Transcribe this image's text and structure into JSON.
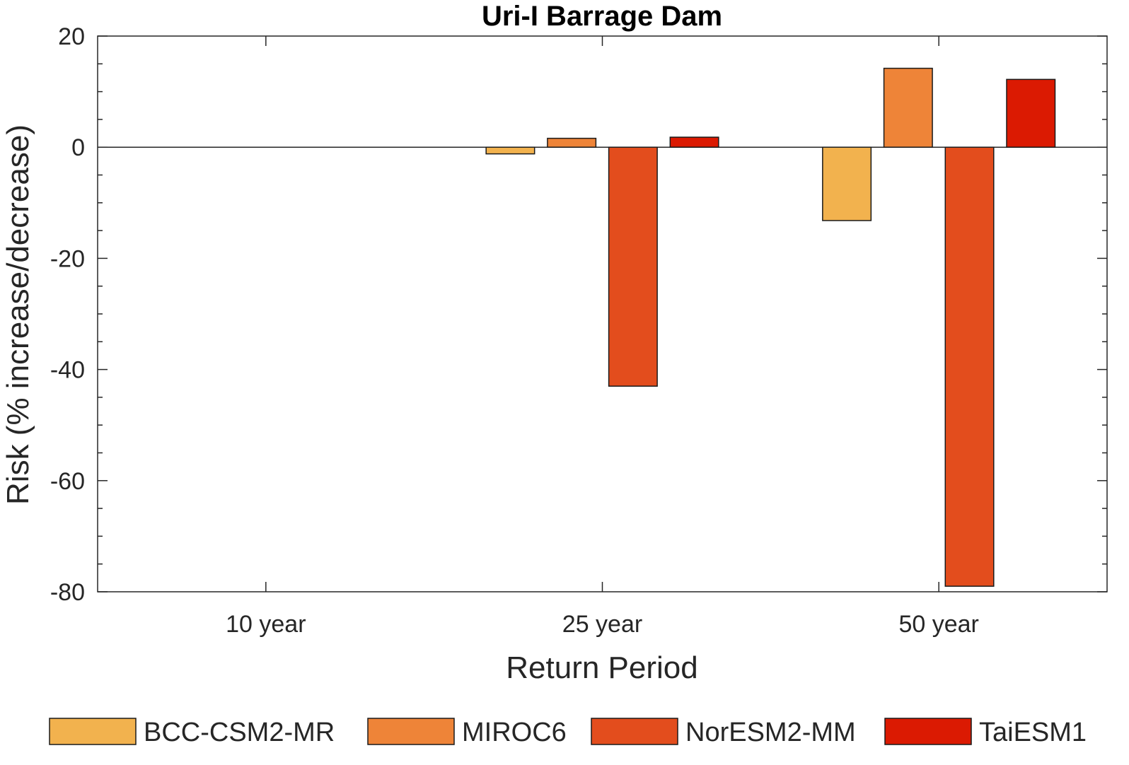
{
  "chart_data": {
    "type": "bar",
    "title": "Uri-I Barrage Dam",
    "xlabel": "Return Period",
    "ylabel": "Risk (% increase/decrease)",
    "categories": [
      "10 year",
      "25 year",
      "50 year"
    ],
    "ylim": [
      -80,
      20
    ],
    "yticks": [
      20,
      0,
      -20,
      -40,
      -60,
      -80
    ],
    "grid": false,
    "legend_position": "bottom",
    "series": [
      {
        "name": "BCC-CSM2-MR",
        "color": "#F2B24E",
        "values": [
          0,
          -1.2,
          -13.2
        ]
      },
      {
        "name": "MIROC6",
        "color": "#EE8438",
        "values": [
          0,
          1.6,
          14.2
        ]
      },
      {
        "name": "NorESM2-MM",
        "color": "#E34D1D",
        "values": [
          0,
          -43.0,
          -79.0
        ]
      },
      {
        "name": "TaiESM1",
        "color": "#DB1A02",
        "values": [
          0,
          1.8,
          12.2
        ]
      }
    ]
  }
}
